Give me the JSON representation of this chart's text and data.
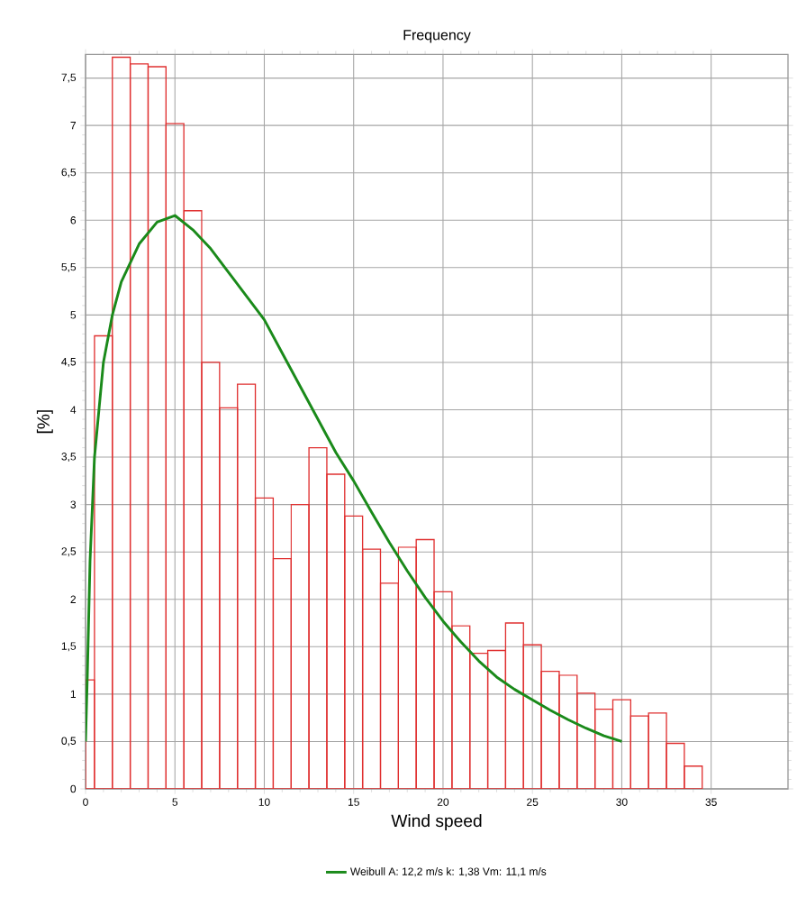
{
  "chart_data": {
    "type": "histogram",
    "title": "Frequency",
    "xlabel": "Wind speed",
    "ylabel": "[%]",
    "xlim": [
      0,
      39.3
    ],
    "xticks": [
      0,
      5,
      10,
      15,
      20,
      25,
      30,
      35
    ],
    "ylim": [
      0,
      7.75
    ],
    "yticks": [
      0,
      {
        "value": 0.5,
        "label": "0,5"
      },
      1,
      {
        "value": 1.5,
        "label": "1,5"
      },
      2,
      {
        "value": 2.5,
        "label": "2,5"
      },
      3,
      {
        "value": 3.5,
        "label": "3,5"
      },
      4,
      {
        "value": 4.5,
        "label": "4,5"
      },
      5,
      {
        "value": 5.5,
        "label": "5,5"
      },
      6,
      {
        "value": 6.5,
        "label": "6,5"
      },
      7,
      {
        "value": 7.5,
        "label": "7,5"
      }
    ],
    "grid": true,
    "legend": "bottom",
    "marker": "none",
    "series": [
      {
        "color": "#e03030",
        "bins": [
          0,
          0.5,
          1.5,
          2.5,
          3.5,
          4.5,
          5.5,
          6.5,
          7.5,
          8.5,
          9.5,
          10.5,
          11.5,
          12.5,
          13.5,
          14.5,
          15.5,
          16.5,
          17.5,
          18.5,
          19.5,
          20.5,
          21.5,
          22.5,
          23.5,
          24.5,
          25.5,
          26.5,
          27.5,
          28.5,
          29.5,
          30.5,
          31.5,
          32.5,
          33.5,
          34.5
        ],
        "values": [
          1.15,
          4.78,
          7.72,
          7.65,
          7.62,
          7.02,
          6.1,
          4.5,
          4.02,
          4.27,
          3.07,
          2.43,
          3.0,
          3.6,
          3.32,
          2.88,
          2.53,
          2.17,
          2.55,
          2.63,
          2.08,
          1.72,
          1.43,
          1.46,
          1.75,
          1.52,
          1.24,
          1.2,
          1.01,
          0.84,
          0.94,
          0.77,
          0.8,
          0.48,
          0.24
        ]
      },
      {
        "type": "line",
        "name": "Weibull A: 12,2 m/s k: 1,38 Vm: 11,1 m/s",
        "color": "#1a8a1a",
        "x": [
          0,
          0.1,
          0.25,
          0.5,
          1,
          1.5,
          2,
          3,
          4,
          5,
          6,
          7,
          8,
          9,
          10,
          11,
          12,
          13,
          14,
          15,
          16,
          17,
          18,
          19,
          20,
          21,
          22,
          23,
          24,
          25,
          26,
          27,
          28,
          29,
          30
        ],
        "values": [
          0.5,
          1.2,
          2.4,
          3.5,
          4.5,
          5.0,
          5.35,
          5.75,
          5.98,
          6.05,
          5.9,
          5.7,
          5.45,
          5.2,
          4.95,
          4.6,
          4.25,
          3.9,
          3.55,
          3.25,
          2.92,
          2.6,
          2.3,
          2.02,
          1.77,
          1.55,
          1.35,
          1.18,
          1.05,
          0.94,
          0.83,
          0.73,
          0.64,
          0.56,
          0.5
        ]
      }
    ]
  }
}
